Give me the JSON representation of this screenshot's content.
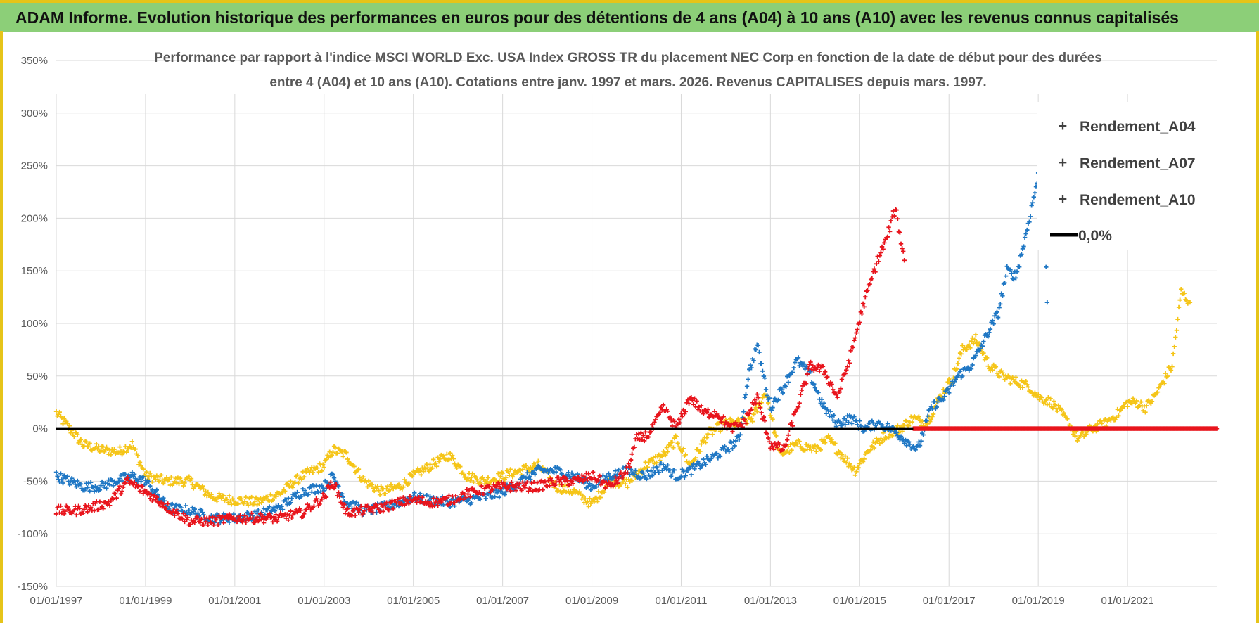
{
  "banner": {
    "title": "ADAM Informe. Evolution historique des performances en euros pour des détentions de 4 ans (A04) à 10 ans (A10) avec les revenus connus capitalisés"
  },
  "colors": {
    "banner_bg": "#8ccf78",
    "banner_border": "#e6c419",
    "A04": "#f5c518",
    "A07": "#1f77c4",
    "A10": "#e8141c",
    "zero": "#000000",
    "grid": "#d9d9d9",
    "axis_text": "#595959"
  },
  "chart_data": {
    "type": "scatter",
    "title_line1": "Performance par rapport à l'indice MSCI WORLD Exc. USA Index GROSS TR  du placement NEC Corp en fonction de la date de début pour des durées",
    "title_line2": "entre 4 (A04) et 10 ans (A10). Cotations entre janv. 1997 et mars. 2026. Revenus CAPITALISES depuis mars. 1997.",
    "x_range": [
      1997.0,
      2023.0
    ],
    "y_range": [
      -150,
      350
    ],
    "y_ticks": [
      -150,
      -100,
      -50,
      0,
      50,
      100,
      150,
      200,
      250,
      300,
      350
    ],
    "y_tick_labels": [
      "-150%",
      "-100%",
      "-50%",
      "0%",
      "50%",
      "100%",
      "150%",
      "200%",
      "250%",
      "300%",
      "350%"
    ],
    "x_ticks": [
      1997,
      1999,
      2001,
      2003,
      2005,
      2007,
      2009,
      2011,
      2013,
      2015,
      2017,
      2019,
      2021
    ],
    "x_tick_labels": [
      "01/01/1997",
      "01/01/1999",
      "01/01/2001",
      "01/01/2003",
      "01/01/2005",
      "01/01/2007",
      "01/01/2009",
      "01/01/2011",
      "01/01/2013",
      "01/01/2015",
      "01/01/2017",
      "01/01/2019",
      "01/01/2021"
    ],
    "legend": [
      {
        "name": "Rendement_A04",
        "marker": "+",
        "color_key": "A04"
      },
      {
        "name": "Rendement_A07",
        "marker": "+",
        "color_key": "A07"
      },
      {
        "name": "Rendement_A10",
        "marker": "+",
        "color_key": "A10"
      },
      {
        "name": "0,0%",
        "marker": "line",
        "color_key": "zero"
      }
    ],
    "legend_position": "top-right",
    "series": [
      {
        "name": "Rendement_A04",
        "x": [
          1997.0,
          1997.3,
          1997.6,
          1998.0,
          1998.4,
          1998.7,
          1999.0,
          1999.5,
          2000.0,
          2000.5,
          2001.0,
          2001.5,
          2002.0,
          2002.5,
          2003.0,
          2003.2,
          2003.5,
          2003.9,
          2004.3,
          2004.7,
          2005.0,
          2005.4,
          2005.8,
          2006.2,
          2006.6,
          2007.0,
          2007.4,
          2007.8,
          2008.2,
          2008.6,
          2009.0,
          2009.4,
          2009.8,
          2010.2,
          2010.6,
          2010.9,
          2011.2,
          2011.6,
          2012.0,
          2012.3,
          2012.6,
          2012.9,
          2013.2,
          2013.6,
          2014.0,
          2014.3,
          2014.6,
          2014.9,
          2015.2,
          2015.6,
          2015.9,
          2016.2,
          2016.5,
          2016.8,
          2017.1,
          2017.3,
          2017.6,
          2017.9,
          2018.2,
          2018.5,
          2018.8,
          2019.0,
          2019.3,
          2019.6,
          2019.9,
          2020.2,
          2020.5,
          2020.8,
          2021.0,
          2021.2,
          2021.4,
          2021.6,
          2021.8,
          2022.0,
          2022.2,
          2022.4
        ],
        "y": [
          15,
          0,
          -15,
          -20,
          -22,
          -15,
          -45,
          -50,
          -50,
          -65,
          -68,
          -70,
          -62,
          -45,
          -35,
          -20,
          -25,
          -50,
          -60,
          -55,
          -45,
          -35,
          -25,
          -45,
          -50,
          -45,
          -40,
          -35,
          -55,
          -60,
          -72,
          -50,
          -52,
          -35,
          -25,
          -10,
          -35,
          -5,
          5,
          5,
          10,
          35,
          -25,
          -15,
          -20,
          -10,
          -25,
          -40,
          -20,
          -5,
          0,
          10,
          5,
          30,
          50,
          75,
          85,
          60,
          50,
          45,
          40,
          30,
          25,
          10,
          -10,
          0,
          5,
          15,
          25,
          25,
          20,
          30,
          45,
          60,
          130,
          120
        ]
      },
      {
        "name": "Rendement_A07",
        "x": [
          1997.0,
          1997.3,
          1997.6,
          1998.0,
          1998.3,
          1998.7,
          1999.0,
          1999.5,
          2000.0,
          2000.5,
          2001.0,
          2001.5,
          2002.0,
          2002.5,
          2003.0,
          2003.2,
          2003.5,
          2003.9,
          2004.3,
          2004.7,
          2005.0,
          2005.4,
          2005.8,
          2006.2,
          2006.6,
          2007.0,
          2007.4,
          2007.8,
          2008.2,
          2008.6,
          2009.0,
          2009.4,
          2009.8,
          2010.2,
          2010.6,
          2010.9,
          2011.2,
          2011.6,
          2012.0,
          2012.3,
          2012.5,
          2012.7,
          2013.0,
          2013.3,
          2013.6,
          2013.9,
          2014.2,
          2014.5,
          2014.8,
          2015.1,
          2015.4,
          2015.7,
          2016.0,
          2016.3,
          2016.6,
          2016.9,
          2017.2,
          2017.5,
          2017.8,
          2018.1,
          2018.3,
          2018.5,
          2018.7,
          2018.9,
          2019.1,
          2019.2
        ],
        "y": [
          -45,
          -50,
          -55,
          -55,
          -50,
          -45,
          -50,
          -75,
          -78,
          -85,
          -85,
          -82,
          -75,
          -60,
          -55,
          -45,
          -70,
          -78,
          -75,
          -70,
          -65,
          -68,
          -70,
          -68,
          -65,
          -60,
          -50,
          -40,
          -40,
          -45,
          -55,
          -45,
          -40,
          -45,
          -35,
          -45,
          -40,
          -30,
          -20,
          -10,
          50,
          80,
          20,
          40,
          65,
          50,
          20,
          5,
          10,
          0,
          5,
          0,
          -10,
          -20,
          20,
          30,
          50,
          60,
          85,
          110,
          150,
          145,
          180,
          220,
          260,
          120
        ]
      },
      {
        "name": "Rendement_A10",
        "x": [
          1997.0,
          1997.4,
          1997.8,
          1998.2,
          1998.6,
          1999.0,
          1999.5,
          2000.0,
          2000.5,
          2001.0,
          2001.5,
          2002.0,
          2002.5,
          2003.0,
          2003.2,
          2003.5,
          2003.9,
          2004.3,
          2004.7,
          2005.0,
          2005.4,
          2005.8,
          2006.2,
          2006.6,
          2007.0,
          2007.4,
          2007.8,
          2008.2,
          2008.6,
          2009.0,
          2009.4,
          2009.8,
          2010.0,
          2010.3,
          2010.6,
          2010.9,
          2011.2,
          2011.5,
          2011.8,
          2012.1,
          2012.4,
          2012.7,
          2013.0,
          2013.3,
          2013.6,
          2013.9,
          2014.2,
          2014.5,
          2014.8,
          2015.1,
          2015.4,
          2015.6,
          2015.8,
          2016.0
        ],
        "y": [
          -78,
          -78,
          -75,
          -70,
          -50,
          -60,
          -75,
          -88,
          -88,
          -85,
          -85,
          -85,
          -80,
          -65,
          -50,
          -80,
          -78,
          -75,
          -70,
          -68,
          -70,
          -68,
          -62,
          -58,
          -55,
          -55,
          -55,
          -50,
          -50,
          -45,
          -55,
          -40,
          -10,
          -5,
          20,
          0,
          30,
          15,
          15,
          0,
          5,
          30,
          -15,
          -20,
          20,
          60,
          55,
          30,
          70,
          120,
          160,
          180,
          210,
          160
        ]
      },
      {
        "name": "Rendement_A10_zero_tail",
        "x_start": 2016.2,
        "x_end": 2023.0,
        "y": 0
      }
    ]
  }
}
